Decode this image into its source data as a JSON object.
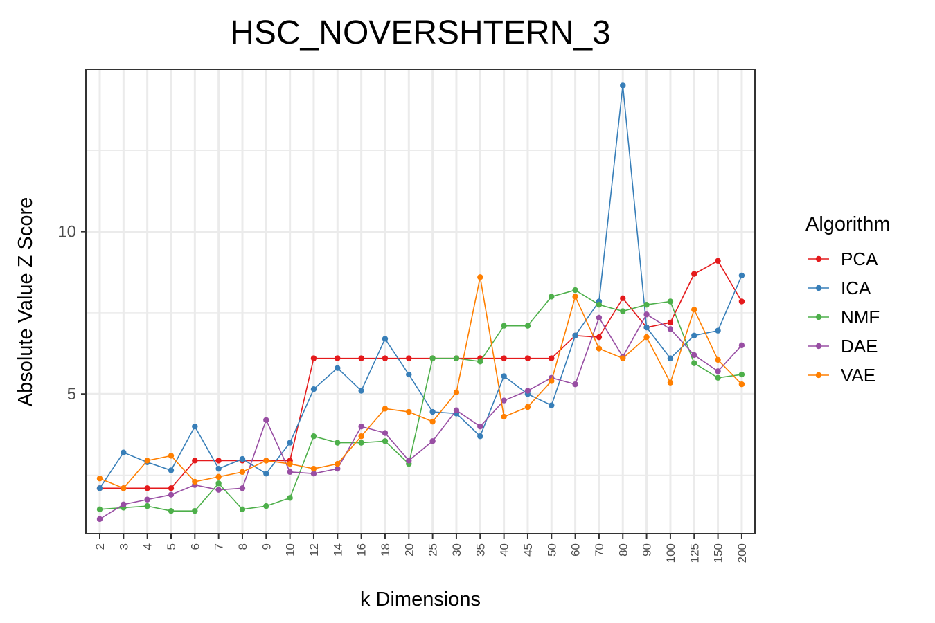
{
  "chart_data": {
    "type": "line",
    "title": "HSC_NOVERSHTERN_3",
    "xlabel": "k Dimensions",
    "ylabel": "Absolute Value Z Score",
    "categories": [
      "2",
      "3",
      "4",
      "5",
      "6",
      "7",
      "8",
      "9",
      "10",
      "12",
      "14",
      "16",
      "18",
      "20",
      "25",
      "30",
      "35",
      "40",
      "45",
      "50",
      "60",
      "70",
      "80",
      "90",
      "100",
      "125",
      "150",
      "200"
    ],
    "yticks": [
      5,
      10
    ],
    "ylim": [
      0.7,
      15.0
    ],
    "grid": true,
    "legend_title": "Algorithm",
    "legend_position": "right",
    "series": [
      {
        "name": "PCA",
        "color": "#e41a1c",
        "values": [
          2.1,
          2.1,
          2.1,
          2.1,
          2.95,
          2.95,
          2.95,
          2.95,
          2.95,
          6.1,
          6.1,
          6.1,
          6.1,
          6.1,
          6.1,
          6.1,
          6.1,
          6.1,
          6.1,
          6.1,
          6.8,
          6.75,
          7.95,
          7.05,
          7.2,
          8.7,
          9.1,
          7.85
        ]
      },
      {
        "name": "ICA",
        "color": "#377eb8",
        "values": [
          2.1,
          3.2,
          2.9,
          2.65,
          4.0,
          2.7,
          3.0,
          2.55,
          3.5,
          5.15,
          5.8,
          5.1,
          6.7,
          5.6,
          4.45,
          4.4,
          3.7,
          5.55,
          5.0,
          4.65,
          6.8,
          7.85,
          14.5,
          7.05,
          6.1,
          6.8,
          6.95,
          8.65
        ]
      },
      {
        "name": "NMF",
        "color": "#4daf4a",
        "values": [
          1.45,
          1.5,
          1.55,
          1.4,
          1.4,
          2.25,
          1.45,
          1.55,
          1.8,
          3.7,
          3.5,
          3.5,
          3.55,
          2.85,
          6.1,
          6.1,
          6.0,
          7.1,
          7.1,
          8.0,
          8.2,
          7.75,
          7.55,
          7.75,
          7.85,
          5.95,
          5.5,
          5.6
        ]
      },
      {
        "name": "DAE",
        "color": "#984ea3",
        "values": [
          1.15,
          1.6,
          1.75,
          1.9,
          2.2,
          2.05,
          2.1,
          4.2,
          2.6,
          2.55,
          2.7,
          4.0,
          3.8,
          2.95,
          3.55,
          4.5,
          4.0,
          4.8,
          5.1,
          5.5,
          5.3,
          7.35,
          6.15,
          7.45,
          7.0,
          6.2,
          5.7,
          6.5
        ]
      },
      {
        "name": "VAE",
        "color": "#ff7f00",
        "values": [
          2.4,
          2.1,
          2.95,
          3.1,
          2.3,
          2.45,
          2.6,
          2.95,
          2.85,
          2.7,
          2.85,
          3.7,
          4.55,
          4.45,
          4.15,
          5.05,
          8.6,
          4.3,
          4.6,
          5.4,
          8.0,
          6.4,
          6.1,
          6.75,
          5.35,
          7.6,
          6.05,
          5.3
        ]
      }
    ]
  }
}
